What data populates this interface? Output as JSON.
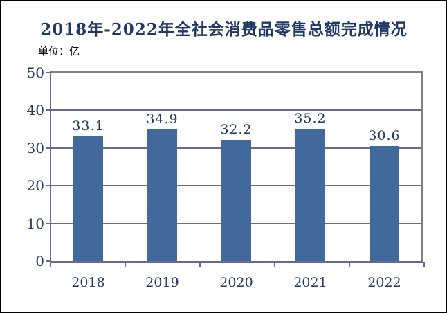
{
  "chart": {
    "title": "2018年-2022年全社会消费品零售总额完成情况",
    "unit_label": "单位：亿"
  },
  "colors": {
    "bar_fill": "#41699C",
    "grid_axis": "#67699B",
    "frame_gray": "#808080",
    "text_navy": "#1F3864",
    "unit_text": "#000000",
    "page_border": "#000000",
    "background": "#FFFFFF"
  },
  "chart_data": {
    "type": "bar",
    "title": "2018年-2022年全社会消费品零售总额完成情况",
    "unit": "亿",
    "categories": [
      "2018",
      "2019",
      "2020",
      "2021",
      "2022"
    ],
    "values": [
      33.1,
      34.9,
      32.2,
      35.2,
      30.6
    ],
    "data_labels": [
      "33.1",
      "34.9",
      "32.2",
      "35.2",
      "30.6"
    ],
    "xlabel": "",
    "ylabel": "",
    "ylim": [
      0,
      50
    ],
    "yticks": [
      0,
      10,
      20,
      30,
      40,
      50
    ],
    "grid": true,
    "legend": false
  }
}
